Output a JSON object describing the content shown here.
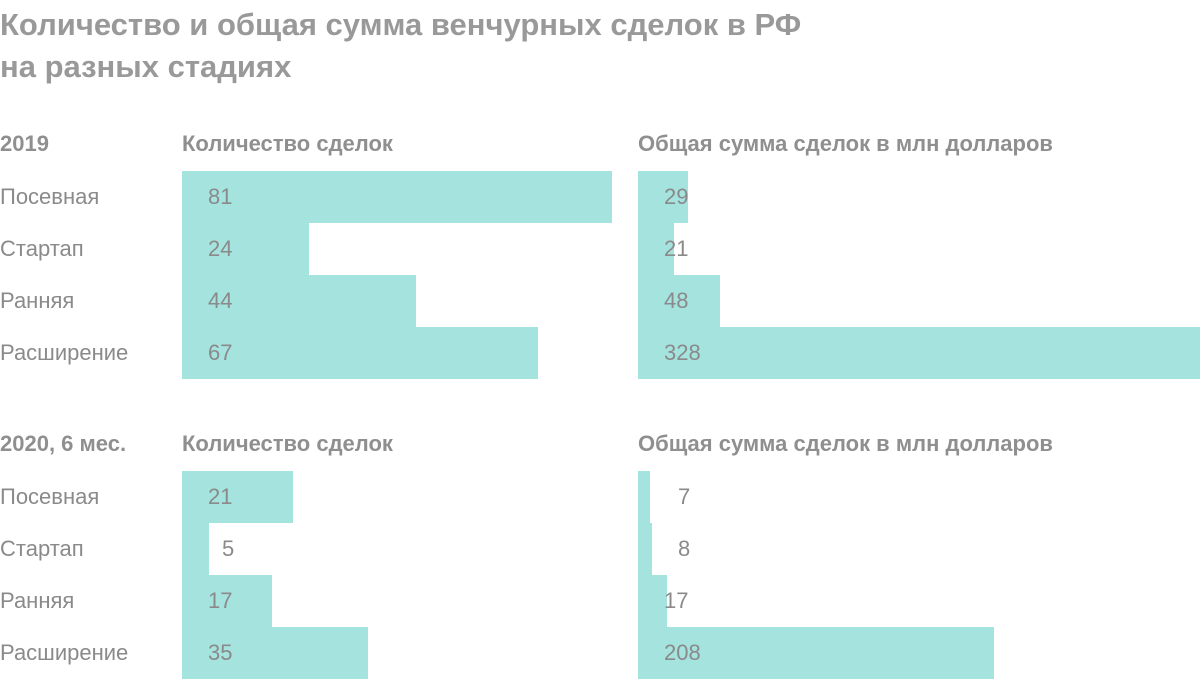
{
  "title_line1": "Количество и общая сумма венчурных сделок в РФ",
  "title_line2": "на разных стадиях",
  "colors": {
    "bar": "#a5e3de",
    "text": "#8a8a8a"
  },
  "chart_data": [
    {
      "type": "bar",
      "period": "2019",
      "title": "Количество сделок",
      "categories": [
        "Посевная",
        "Стартап",
        "Ранняя",
        "Расширение"
      ],
      "values": [
        81,
        24,
        44,
        67
      ],
      "orientation": "horizontal"
    },
    {
      "type": "bar",
      "period": "2019",
      "title": "Общая сумма сделок в млн долларов",
      "categories": [
        "Посевная",
        "Стартап",
        "Ранняя",
        "Расширение"
      ],
      "values": [
        29,
        21,
        48,
        328
      ],
      "orientation": "horizontal"
    },
    {
      "type": "bar",
      "period": "2020, 6 мес.",
      "title": "Количество сделок",
      "categories": [
        "Посевная",
        "Стартап",
        "Ранняя",
        "Расширение"
      ],
      "values": [
        21,
        5,
        17,
        35
      ],
      "orientation": "horizontal"
    },
    {
      "type": "bar",
      "period": "2020, 6 мес.",
      "title": "Общая сумма сделок в млн долларов",
      "categories": [
        "Посевная",
        "Стартап",
        "Ранняя",
        "Расширение"
      ],
      "values": [
        7,
        8,
        17,
        208
      ],
      "orientation": "horizontal"
    }
  ]
}
